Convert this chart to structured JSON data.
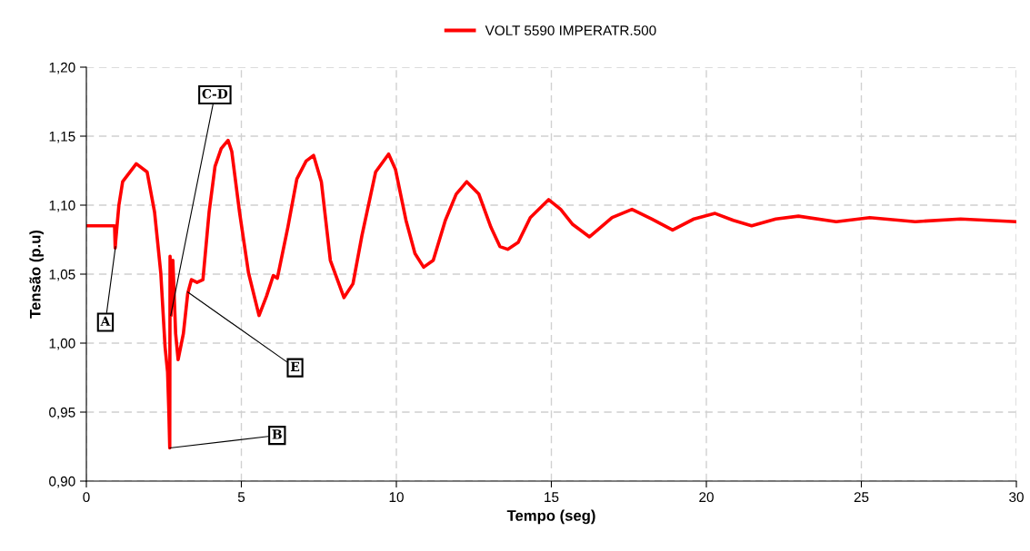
{
  "chart_data": {
    "type": "line",
    "xlabel": "Tempo (seg)",
    "ylabel": "Tensão (p.u)",
    "xlim": [
      0,
      30
    ],
    "xticks": [
      0,
      5,
      10,
      15,
      20,
      25,
      30
    ],
    "ylim": [
      0.9,
      1.2
    ],
    "yticks": [
      {
        "value": 0.9,
        "label": "0,90"
      },
      {
        "value": 0.95,
        "label": "0,95"
      },
      {
        "value": 1.0,
        "label": "1,00"
      },
      {
        "value": 1.05,
        "label": "1,05"
      },
      {
        "value": 1.1,
        "label": "1,10"
      },
      {
        "value": 1.15,
        "label": "1,15"
      },
      {
        "value": 1.2,
        "label": "1,20"
      }
    ],
    "grid": true,
    "legend": "top",
    "line_style": "solid",
    "marker": "none",
    "series": [
      {
        "name": "VOLT 5590 IMPERATR.500",
        "color": "#ff0000",
        "x": [
          0,
          0.91,
          0.93,
          0.95,
          1.05,
          1.17,
          1.61,
          1.96,
          2.2,
          2.4,
          2.54,
          2.62,
          2.66,
          2.69,
          2.7,
          2.73,
          2.79,
          2.88,
          2.96,
          3.13,
          3.27,
          3.39,
          3.57,
          3.76,
          3.96,
          4.15,
          4.35,
          4.57,
          4.69,
          4.94,
          5.23,
          5.57,
          5.81,
          6.03,
          6.16,
          6.5,
          6.79,
          7.09,
          7.33,
          7.58,
          7.87,
          8.31,
          8.6,
          8.89,
          9.33,
          9.75,
          9.97,
          10.31,
          10.6,
          10.88,
          11.19,
          11.58,
          11.93,
          12.27,
          12.66,
          13.05,
          13.34,
          13.59,
          13.93,
          14.32,
          14.91,
          15.3,
          15.69,
          16.23,
          16.96,
          17.6,
          18.23,
          18.91,
          19.6,
          20.28,
          20.87,
          21.46,
          22.24,
          22.97,
          24.19,
          25.27,
          26.74,
          28.2,
          30
        ],
        "values": [
          1.085,
          1.085,
          1.069,
          1.075,
          1.1,
          1.117,
          1.13,
          1.124,
          1.095,
          1.051,
          0.997,
          0.979,
          0.951,
          0.924,
          1.063,
          1.02,
          1.06,
          1.007,
          0.988,
          1.007,
          1.036,
          1.046,
          1.044,
          1.046,
          1.095,
          1.128,
          1.141,
          1.147,
          1.139,
          1.095,
          1.051,
          1.02,
          1.034,
          1.049,
          1.047,
          1.084,
          1.119,
          1.132,
          1.136,
          1.117,
          1.06,
          1.033,
          1.043,
          1.078,
          1.124,
          1.137,
          1.126,
          1.089,
          1.065,
          1.055,
          1.06,
          1.089,
          1.108,
          1.117,
          1.108,
          1.084,
          1.07,
          1.068,
          1.073,
          1.091,
          1.104,
          1.097,
          1.086,
          1.077,
          1.091,
          1.097,
          1.09,
          1.082,
          1.09,
          1.094,
          1.089,
          1.085,
          1.09,
          1.092,
          1.088,
          1.091,
          1.088,
          1.09,
          1.088
        ]
      }
    ],
    "annotations": [
      {
        "text": "A",
        "x": 0.94,
        "y": 1.07
      },
      {
        "text": "C-D",
        "x": 2.72,
        "y": 1.02
      },
      {
        "text": "E",
        "x": 3.27,
        "y": 1.037
      },
      {
        "text": "B",
        "x": 2.69,
        "y": 0.924
      }
    ]
  }
}
